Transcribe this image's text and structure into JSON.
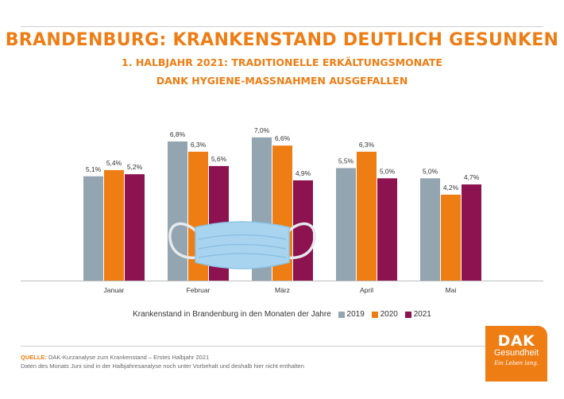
{
  "title": "BRANDENBURG: KRANKENSTAND DEUTLICH GESUNKEN",
  "subtitle_line1": "1. HALBJAHR 2021: TRADITIONELLE ERKÄLTUNGSMONATE",
  "subtitle_line2": "DANK HYGIENE-MASSNAHMEN AUSGEFALLEN",
  "chart_data": {
    "type": "bar",
    "categories": [
      "Januar",
      "Februar",
      "März",
      "April",
      "Mai"
    ],
    "series": [
      {
        "name": "2019",
        "color": "#93a5b0",
        "values": [
          5.1,
          6.8,
          7.0,
          5.5,
          5.0
        ],
        "labels": [
          "5,1%",
          "6,8%",
          "7,0%",
          "5,5%",
          "5,0%"
        ]
      },
      {
        "name": "2020",
        "color": "#ee7d14",
        "values": [
          5.4,
          6.3,
          6.6,
          6.3,
          4.2
        ],
        "labels": [
          "5,4%",
          "6,3%",
          "6,6%",
          "6,3%",
          "4,2%"
        ]
      },
      {
        "name": "2021",
        "color": "#8c1250",
        "values": [
          5.2,
          5.6,
          4.9,
          5.0,
          4.7
        ],
        "labels": [
          "5,2%",
          "5,6%",
          "4,9%",
          "5,0%",
          "4,7%"
        ]
      }
    ],
    "ylim": [
      0,
      7.5
    ],
    "grid": false,
    "legend_title": "Krankenstand in Brandenburg in den Monaten der Jahre",
    "legend_position": "bottom"
  },
  "source_label": "QUELLE:",
  "source_text": "DAK-Kurzanalyse zum Krankenstand – Erstes Halbjahr 2021",
  "source_note": "Daten des Monats Juni sind in der Halbjahresanalyse noch unter Vorbehalt und deshalb hier nicht enthalten",
  "logo": {
    "brand": "DAK",
    "name": "Gesundheit",
    "slogan": "Ein Leben lang."
  },
  "illustration": "face-mask"
}
